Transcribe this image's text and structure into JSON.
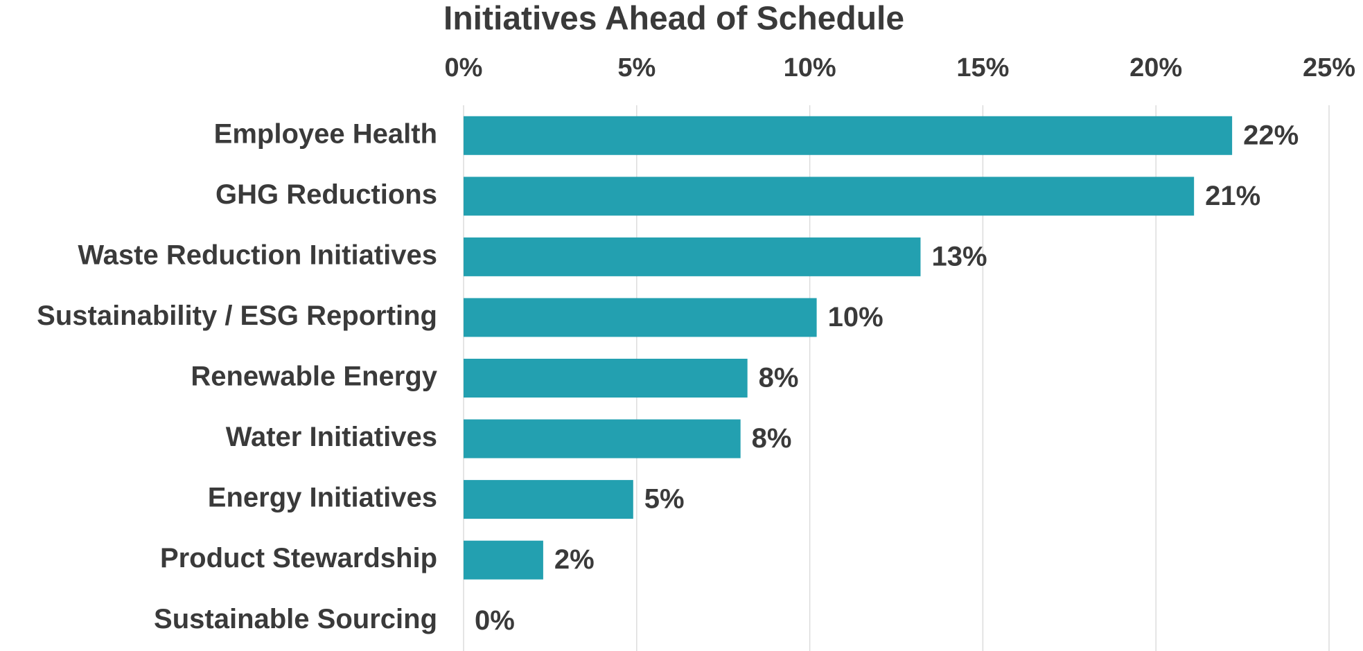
{
  "chart_data": {
    "type": "bar",
    "orientation": "horizontal",
    "title": "Initiatives Ahead of Schedule",
    "categories": [
      "Employee Health",
      "GHG Reductions",
      "Waste Reduction Initiatives",
      "Sustainability / ESG Reporting",
      "Renewable Energy",
      "Water Initiatives",
      "Energy Initiatives",
      "Product Stewardship",
      "Sustainable Sourcing"
    ],
    "values": [
      22.2,
      21.1,
      13.2,
      10.2,
      8.2,
      8.0,
      4.9,
      2.3,
      0
    ],
    "value_labels": [
      "22%",
      "21%",
      "13%",
      "10%",
      "8%",
      "8%",
      "5%",
      "2%",
      "0%"
    ],
    "color": "#23a0b0",
    "xlim": [
      0,
      25
    ],
    "xticks": [
      {
        "value": 0,
        "label": "0%"
      },
      {
        "value": 5,
        "label": "5%"
      },
      {
        "value": 10,
        "label": "10%"
      },
      {
        "value": 15,
        "label": "15%"
      },
      {
        "value": 20,
        "label": "20%"
      },
      {
        "value": 25,
        "label": "25%"
      }
    ],
    "grid": true
  }
}
